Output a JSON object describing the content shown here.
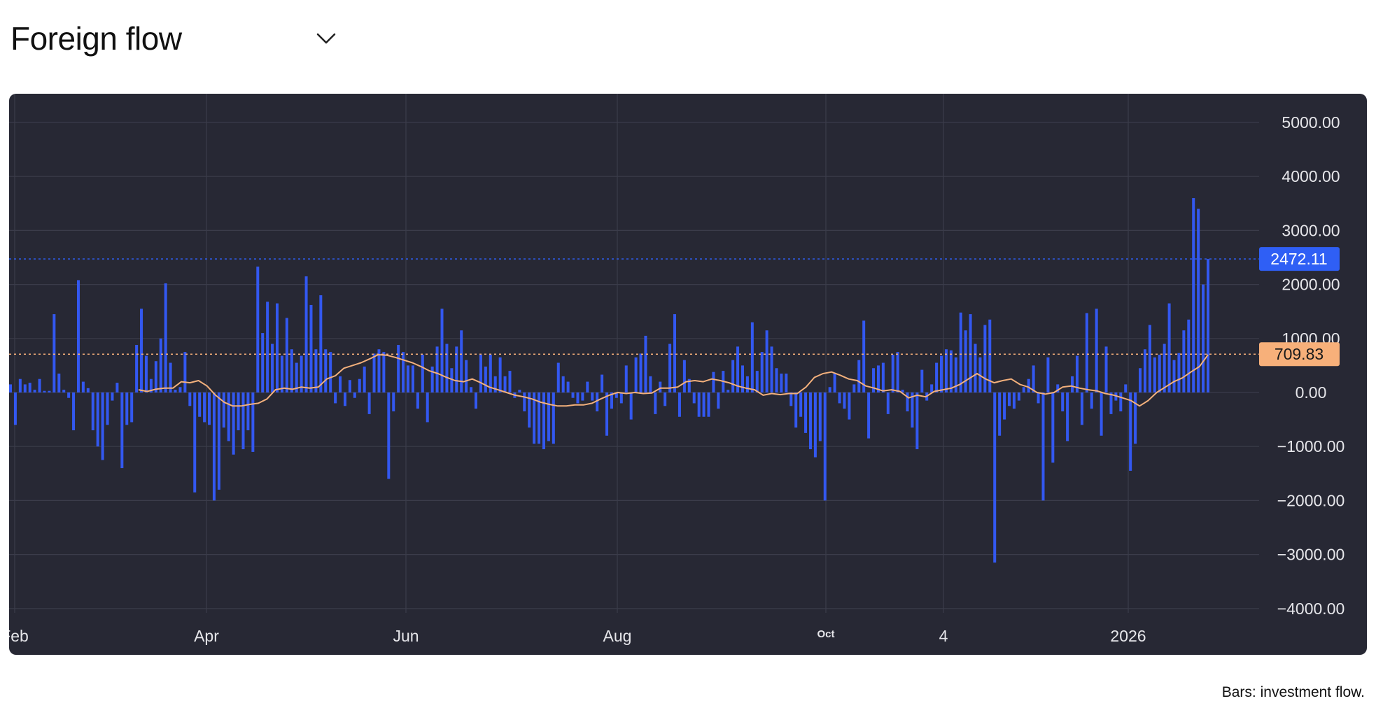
{
  "header": {
    "title": "Foreign flow"
  },
  "footnote": "Bars: investment flow.",
  "chart_data": {
    "type": "bar",
    "x_tick_labels": [
      "Feb",
      "Apr",
      "Jun",
      "Aug",
      "Oct",
      "4",
      "2026"
    ],
    "y_ticks": [
      5000,
      4000,
      3000,
      2000,
      1000,
      0,
      -1000,
      -2000,
      -3000,
      -4000
    ],
    "y_tick_labels": [
      "5000.00",
      "4000.00",
      "3000.00",
      "2000.00",
      "1000.00",
      "0.00",
      "−1000.00",
      "−2000.00",
      "−3000.00",
      "−4000.00"
    ],
    "ylim": [
      -4400,
      5300
    ],
    "grid": true,
    "colors": {
      "bars": "#3358f0",
      "line": "#f3b07c",
      "background": "#272834",
      "grid": "#3b3c4a",
      "text": "#e6e6ea"
    },
    "price_labels": [
      {
        "text": "2472.11",
        "value": 2472.11,
        "color": "#2f5ff5",
        "line_style": "dotted"
      },
      {
        "text": "709.83",
        "value": 709.83,
        "color": "#f7b07a",
        "line_style": "dotted"
      }
    ],
    "series": [
      {
        "kind": "bar",
        "values": [
          150,
          -600,
          250,
          150,
          180,
          50,
          250,
          30,
          30,
          1450,
          350,
          50,
          -100,
          -700,
          2080,
          200,
          80,
          -700,
          -1000,
          -1250,
          -600,
          -150,
          180,
          -1400,
          -600,
          -550,
          880,
          1550,
          680,
          250,
          580,
          1000,
          2020,
          550,
          50,
          100,
          750,
          -250,
          -1850,
          -450,
          -550,
          -600,
          -2000,
          -1800,
          -650,
          -900,
          -1150,
          -700,
          -1050,
          -700,
          -1100,
          2330,
          1100,
          1680,
          900,
          1650,
          680,
          1380,
          800,
          550,
          680,
          2150,
          1620,
          800,
          1800,
          800,
          750,
          -200,
          300,
          -250,
          230,
          -100,
          250,
          480,
          -400,
          720,
          800,
          750,
          -1600,
          -350,
          880,
          750,
          500,
          500,
          -300,
          700,
          -550,
          480,
          850,
          1550,
          900,
          450,
          850,
          1150,
          600,
          100,
          -300,
          700,
          480,
          700,
          300,
          650,
          300,
          400,
          -100,
          50,
          -350,
          -650,
          -950,
          -950,
          -1050,
          -900,
          -950,
          550,
          300,
          200,
          -100,
          -200,
          -150,
          200,
          -150,
          -350,
          330,
          -800,
          -300,
          -100,
          -200,
          500,
          -500,
          650,
          720,
          1050,
          300,
          -400,
          200,
          -250,
          900,
          1450,
          -450,
          600,
          250,
          -200,
          -450,
          -450,
          -450,
          380,
          -300,
          400,
          50,
          600,
          850,
          500,
          300,
          1300,
          400,
          750,
          1150,
          850,
          450,
          350,
          350,
          -250,
          -650,
          -450,
          -750,
          -1050,
          -1200,
          -900,
          -2000,
          100,
          350,
          -200,
          -300,
          -500,
          150,
          600,
          1330,
          -850,
          450,
          500,
          550,
          -400,
          700,
          750,
          50,
          -350,
          -650,
          -1050,
          420,
          -150,
          150,
          550,
          680,
          800,
          780,
          650,
          1480,
          1150,
          1450,
          900,
          650,
          1250,
          1350,
          -3150,
          -800,
          -500,
          -250,
          -300,
          -150,
          100,
          250,
          500,
          -200,
          -2000,
          650,
          -1300,
          150,
          -350,
          -900,
          300,
          680,
          -600,
          1470,
          -300,
          1550,
          -800,
          850,
          -400,
          -150,
          -350,
          150,
          -1450,
          -950,
          450,
          800,
          1250,
          650,
          700,
          900,
          1650,
          600,
          730,
          1150,
          1350,
          3600,
          3400,
          2000,
          2472.11
        ]
      },
      {
        "kind": "line",
        "points": [
          [
            21,
            50
          ],
          [
            23,
            20
          ],
          [
            25,
            60
          ],
          [
            27,
            80
          ],
          [
            29,
            80
          ],
          [
            31,
            200
          ],
          [
            33,
            180
          ],
          [
            35,
            220
          ],
          [
            37,
            120
          ],
          [
            39,
            -50
          ],
          [
            41,
            -180
          ],
          [
            43,
            -250
          ],
          [
            45,
            -250
          ],
          [
            47,
            -220
          ],
          [
            49,
            -200
          ],
          [
            51,
            -120
          ],
          [
            53,
            50
          ],
          [
            55,
            80
          ],
          [
            57,
            60
          ],
          [
            59,
            100
          ],
          [
            61,
            80
          ],
          [
            63,
            100
          ],
          [
            65,
            250
          ],
          [
            67,
            310
          ],
          [
            69,
            450
          ],
          [
            71,
            500
          ],
          [
            73,
            550
          ],
          [
            75,
            620
          ],
          [
            77,
            700
          ],
          [
            79,
            690
          ],
          [
            81,
            650
          ],
          [
            83,
            600
          ],
          [
            85,
            550
          ],
          [
            87,
            480
          ],
          [
            89,
            400
          ],
          [
            91,
            350
          ],
          [
            93,
            280
          ],
          [
            95,
            220
          ],
          [
            97,
            200
          ],
          [
            99,
            250
          ],
          [
            101,
            180
          ],
          [
            103,
            100
          ],
          [
            105,
            50
          ],
          [
            107,
            0
          ],
          [
            109,
            -50
          ],
          [
            111,
            -80
          ],
          [
            113,
            -120
          ],
          [
            115,
            -180
          ],
          [
            117,
            -220
          ],
          [
            119,
            -250
          ],
          [
            121,
            -250
          ],
          [
            123,
            -230
          ],
          [
            125,
            -230
          ],
          [
            127,
            -200
          ],
          [
            129,
            -120
          ],
          [
            131,
            -50
          ],
          [
            133,
            0
          ],
          [
            135,
            -20
          ],
          [
            137,
            0
          ],
          [
            139,
            -20
          ],
          [
            141,
            -10
          ],
          [
            143,
            80
          ],
          [
            145,
            80
          ],
          [
            147,
            100
          ],
          [
            149,
            200
          ],
          [
            151,
            220
          ],
          [
            153,
            200
          ],
          [
            155,
            250
          ],
          [
            157,
            220
          ],
          [
            159,
            180
          ],
          [
            161,
            120
          ],
          [
            163,
            80
          ],
          [
            165,
            50
          ],
          [
            167,
            -50
          ],
          [
            169,
            -20
          ],
          [
            171,
            -40
          ],
          [
            173,
            -20
          ],
          [
            175,
            -20
          ],
          [
            177,
            100
          ],
          [
            179,
            280
          ],
          [
            181,
            350
          ],
          [
            183,
            380
          ],
          [
            185,
            320
          ],
          [
            187,
            250
          ],
          [
            189,
            220
          ],
          [
            191,
            120
          ],
          [
            193,
            80
          ],
          [
            195,
            30
          ],
          [
            197,
            50
          ],
          [
            199,
            20
          ],
          [
            201,
            -100
          ],
          [
            203,
            -50
          ],
          [
            205,
            -80
          ],
          [
            207,
            20
          ],
          [
            209,
            50
          ],
          [
            211,
            80
          ],
          [
            213,
            150
          ],
          [
            215,
            250
          ],
          [
            217,
            350
          ],
          [
            219,
            250
          ],
          [
            221,
            180
          ],
          [
            223,
            220
          ],
          [
            225,
            250
          ],
          [
            227,
            150
          ],
          [
            229,
            100
          ],
          [
            231,
            0
          ],
          [
            233,
            -30
          ],
          [
            235,
            0
          ],
          [
            237,
            100
          ],
          [
            239,
            120
          ],
          [
            241,
            80
          ],
          [
            243,
            50
          ],
          [
            245,
            30
          ],
          [
            247,
            -20
          ],
          [
            249,
            -50
          ],
          [
            251,
            -100
          ],
          [
            253,
            -150
          ],
          [
            255,
            -250
          ],
          [
            257,
            -150
          ],
          [
            259,
            0
          ],
          [
            261,
            100
          ],
          [
            263,
            200
          ],
          [
            265,
            270
          ],
          [
            267,
            380
          ],
          [
            269,
            480
          ],
          [
            271,
            700
          ]
        ],
        "x_range": [
          0,
          272
        ]
      }
    ]
  }
}
